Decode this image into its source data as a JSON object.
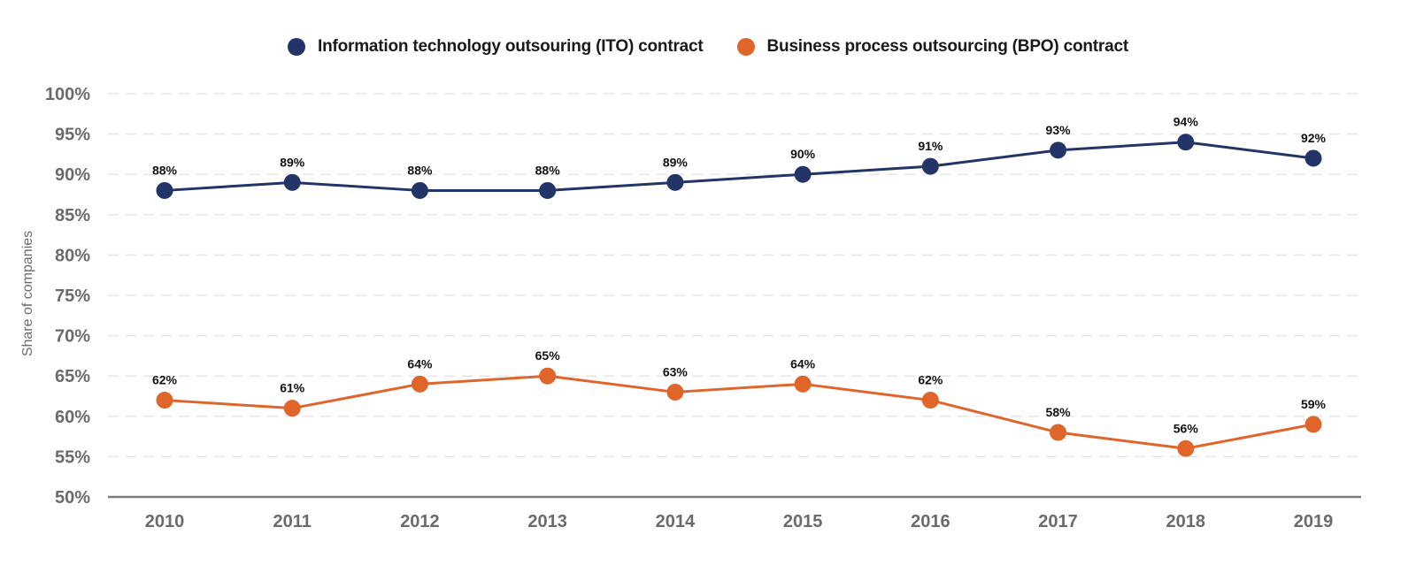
{
  "chart_data": {
    "type": "line",
    "title": "",
    "xlabel": "",
    "ylabel": "Share of companies",
    "ylim": [
      50,
      100
    ],
    "yticks": [
      "50%",
      "55%",
      "60%",
      "65%",
      "70%",
      "75%",
      "80%",
      "85%",
      "90%",
      "95%",
      "100%"
    ],
    "ytick_values": [
      50,
      55,
      60,
      65,
      70,
      75,
      80,
      85,
      90,
      95,
      100
    ],
    "grid": "horizontal-dashed",
    "legend_position": "top-center",
    "categories": [
      "2010",
      "2011",
      "2012",
      "2013",
      "2014",
      "2015",
      "2016",
      "2017",
      "2018",
      "2019"
    ],
    "series": [
      {
        "name": "Information technology outsouring (ITO) contract",
        "color": "#233568",
        "values": [
          88,
          89,
          88,
          88,
          89,
          90,
          91,
          93,
          94,
          92
        ],
        "labels": [
          "88%",
          "89%",
          "88%",
          "88%",
          "89%",
          "90%",
          "91%",
          "93%",
          "94%",
          "92%"
        ]
      },
      {
        "name": "Business process outsourcing (BPO) contract",
        "color": "#e0652b",
        "values": [
          62,
          61,
          64,
          65,
          63,
          64,
          62,
          58,
          56,
          59
        ],
        "labels": [
          "62%",
          "61%",
          "64%",
          "65%",
          "63%",
          "64%",
          "62%",
          "58%",
          "56%",
          "59%"
        ]
      }
    ]
  },
  "legend": [
    {
      "label": "Information technology outsouring (ITO) contract",
      "color": "#233568"
    },
    {
      "label": "Business process outsourcing (BPO) contract",
      "color": "#e0652b"
    }
  ]
}
